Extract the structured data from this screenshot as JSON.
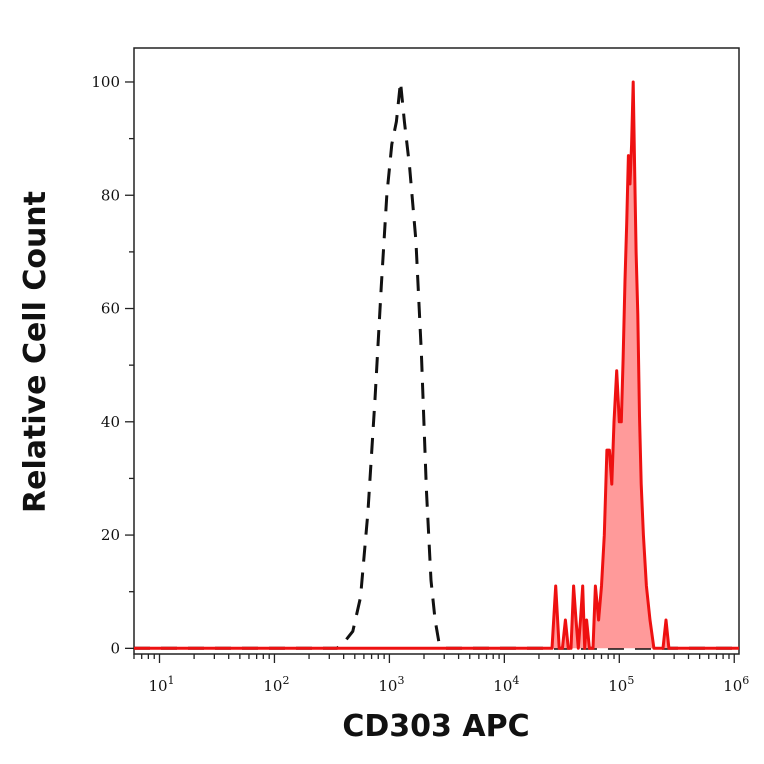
{
  "chart_data": {
    "type": "histogram",
    "xlabel": "CD303 APC",
    "ylabel": "Relative Cell Count",
    "x_scale": "log10",
    "xlim": [
      6,
      1100000
    ],
    "ylim": [
      -1,
      106
    ],
    "x_ticks": [
      10,
      100,
      1000,
      10000,
      100000,
      1000000
    ],
    "x_tick_labels": [
      {
        "base": "10",
        "exp": "1"
      },
      {
        "base": "10",
        "exp": "2"
      },
      {
        "base": "10",
        "exp": "3"
      },
      {
        "base": "10",
        "exp": "4"
      },
      {
        "base": "10",
        "exp": "5"
      },
      {
        "base": "10",
        "exp": "6"
      }
    ],
    "y_ticks": [
      0,
      20,
      40,
      60,
      80,
      100
    ],
    "y_tick_labels": [
      "0",
      "20",
      "40",
      "60",
      "80",
      "100"
    ],
    "grid": false,
    "series": [
      {
        "style": "dashed",
        "color": "#111111",
        "fill": false,
        "points": [
          [
            6,
            0
          ],
          [
            300,
            0
          ],
          [
            350,
            0
          ],
          [
            420,
            1.5
          ],
          [
            480,
            3
          ],
          [
            560,
            9
          ],
          [
            650,
            24
          ],
          [
            750,
            44
          ],
          [
            850,
            64
          ],
          [
            950,
            80
          ],
          [
            1050,
            89
          ],
          [
            1150,
            93
          ],
          [
            1250,
            100
          ],
          [
            1350,
            93
          ],
          [
            1500,
            85
          ],
          [
            1700,
            72
          ],
          [
            1900,
            52
          ],
          [
            2100,
            28
          ],
          [
            2300,
            12
          ],
          [
            2500,
            5
          ],
          [
            2700,
            1
          ],
          [
            3000,
            0
          ],
          [
            10000,
            0
          ],
          [
            1100000,
            0
          ]
        ]
      },
      {
        "style": "solid",
        "color": "#ee1111",
        "fill": true,
        "fill_color": "#ff9a9a",
        "points": [
          [
            6,
            0
          ],
          [
            26000,
            0
          ],
          [
            28000,
            11
          ],
          [
            30000,
            0
          ],
          [
            32000,
            0
          ],
          [
            34000,
            5
          ],
          [
            36000,
            0
          ],
          [
            38000,
            0
          ],
          [
            40000,
            11
          ],
          [
            42000,
            5
          ],
          [
            44000,
            0
          ],
          [
            46000,
            5
          ],
          [
            48000,
            11
          ],
          [
            50000,
            0
          ],
          [
            52000,
            5
          ],
          [
            55000,
            0
          ],
          [
            59000,
            0
          ],
          [
            62000,
            11
          ],
          [
            66000,
            5
          ],
          [
            70000,
            11
          ],
          [
            74000,
            20
          ],
          [
            78000,
            35
          ],
          [
            82000,
            35
          ],
          [
            86000,
            29
          ],
          [
            90000,
            40
          ],
          [
            95000,
            49
          ],
          [
            100000,
            40
          ],
          [
            104000,
            40
          ],
          [
            108000,
            51
          ],
          [
            112000,
            65
          ],
          [
            116000,
            75
          ],
          [
            120000,
            87
          ],
          [
            124000,
            82
          ],
          [
            128000,
            89
          ],
          [
            132000,
            100
          ],
          [
            136000,
            85
          ],
          [
            140000,
            70
          ],
          [
            145000,
            59
          ],
          [
            150000,
            41
          ],
          [
            155000,
            29
          ],
          [
            162000,
            20
          ],
          [
            172000,
            11
          ],
          [
            185000,
            5
          ],
          [
            200000,
            0
          ],
          [
            240000,
            0
          ],
          [
            255000,
            5
          ],
          [
            270000,
            0
          ],
          [
            1100000,
            0
          ]
        ]
      }
    ]
  }
}
